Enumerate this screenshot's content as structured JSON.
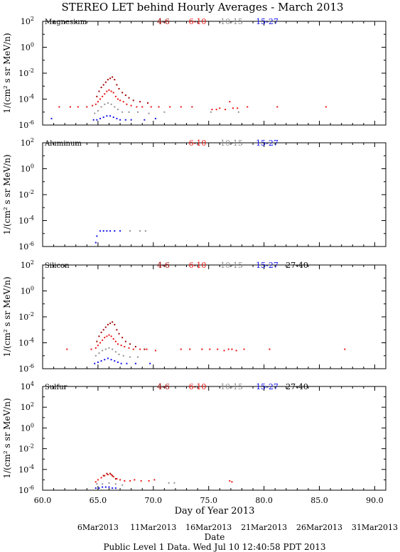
{
  "title": "STEREO LET behind Hourly Averages - March 2013",
  "footer": "Public Level 1 Data. Wed Jul 10 12:40:58 PDT 2013",
  "xlabel": "Day of Year 2013",
  "date_label": "Date",
  "date_ticks": [
    {
      "doy": 65,
      "label": "6Mar2013"
    },
    {
      "doy": 70,
      "label": "11Mar2013"
    },
    {
      "doy": 75,
      "label": "16Mar2013"
    },
    {
      "doy": 80,
      "label": "21Mar2013"
    },
    {
      "doy": 85,
      "label": "26Mar2013"
    },
    {
      "doy": 90,
      "label": "31Mar2013"
    }
  ],
  "colors": {
    "4-6": "#a00000",
    "6-10": "#ee1111",
    "10-15": "#909090",
    "15-27": "#1010ee",
    "27-40": "#000000"
  },
  "chart_data": [
    {
      "type": "scatter",
      "element": "Magnesium",
      "ylabel": "1/(cm² s sr MeV/n)",
      "xlim": [
        60,
        91
      ],
      "ylim_exp": [
        -6,
        2
      ],
      "ytick_exps": [
        -6,
        -4,
        -2,
        0,
        2
      ],
      "legend": [
        "4-6",
        "6-10",
        "10-15",
        "15-27"
      ],
      "series": [
        {
          "name": "4-6",
          "points": [
            [
              64.9,
              -3.8
            ],
            [
              65.1,
              -3.4
            ],
            [
              65.3,
              -3.1
            ],
            [
              65.5,
              -2.9
            ],
            [
              65.7,
              -2.7
            ],
            [
              65.9,
              -2.5
            ],
            [
              66.1,
              -2.4
            ],
            [
              66.3,
              -2.3
            ],
            [
              66.5,
              -2.5
            ],
            [
              66.7,
              -2.9
            ],
            [
              66.9,
              -3.2
            ],
            [
              67.2,
              -3.5
            ],
            [
              67.5,
              -3.7
            ],
            [
              67.8,
              -3.9
            ],
            [
              68.2,
              -4.1
            ],
            [
              68.8,
              -4.2
            ],
            [
              69.5,
              -4.3
            ]
          ]
        },
        {
          "name": "6-10",
          "points": [
            [
              61.5,
              -4.6
            ],
            [
              62.5,
              -4.6
            ],
            [
              63.2,
              -4.6
            ],
            [
              64.0,
              -4.6
            ],
            [
              64.5,
              -4.5
            ],
            [
              64.8,
              -4.4
            ],
            [
              65.0,
              -4.2
            ],
            [
              65.2,
              -4.0
            ],
            [
              65.4,
              -3.8
            ],
            [
              65.6,
              -3.6
            ],
            [
              65.8,
              -3.4
            ],
            [
              66.0,
              -3.3
            ],
            [
              66.2,
              -3.4
            ],
            [
              66.4,
              -3.5
            ],
            [
              66.6,
              -3.8
            ],
            [
              66.8,
              -4.0
            ],
            [
              67.0,
              -4.1
            ],
            [
              67.3,
              -4.2
            ],
            [
              67.6,
              -4.4
            ],
            [
              68.0,
              -4.5
            ],
            [
              68.5,
              -4.6
            ],
            [
              69.0,
              -4.6
            ],
            [
              69.8,
              -4.6
            ],
            [
              70.5,
              -4.6
            ],
            [
              71.5,
              -4.6
            ],
            [
              72.5,
              -4.6
            ],
            [
              73.5,
              -4.6
            ],
            [
              75.3,
              -4.8
            ],
            [
              75.7,
              -4.8
            ],
            [
              76.0,
              -4.7
            ],
            [
              76.5,
              -4.8
            ],
            [
              76.9,
              -4.2
            ],
            [
              77.2,
              -4.7
            ],
            [
              77.6,
              -4.7
            ],
            [
              78.5,
              -4.6
            ],
            [
              81.2,
              -4.6
            ],
            [
              85.6,
              -4.6
            ]
          ]
        },
        {
          "name": "10-15",
          "points": [
            [
              64.7,
              -5.1
            ],
            [
              65.0,
              -4.9
            ],
            [
              65.3,
              -4.6
            ],
            [
              65.6,
              -4.4
            ],
            [
              65.9,
              -4.3
            ],
            [
              66.2,
              -4.4
            ],
            [
              66.5,
              -4.6
            ],
            [
              66.8,
              -4.8
            ],
            [
              67.2,
              -5.0
            ],
            [
              67.8,
              -5.0
            ],
            [
              68.6,
              -5.0
            ],
            [
              69.6,
              -5.1
            ],
            [
              71.0,
              -5.0
            ],
            [
              75.2,
              -5.0
            ],
            [
              77.7,
              -5.0
            ]
          ]
        },
        {
          "name": "15-27",
          "points": [
            [
              60.8,
              -5.5
            ],
            [
              64.6,
              -5.6
            ],
            [
              64.9,
              -5.6
            ],
            [
              65.2,
              -5.5
            ],
            [
              65.5,
              -5.4
            ],
            [
              65.8,
              -5.3
            ],
            [
              66.1,
              -5.3
            ],
            [
              66.4,
              -5.4
            ],
            [
              66.7,
              -5.5
            ],
            [
              67.0,
              -5.6
            ],
            [
              67.5,
              -5.6
            ],
            [
              68.0,
              -5.6
            ],
            [
              69.2,
              -5.6
            ],
            [
              70.2,
              -5.5
            ]
          ]
        }
      ]
    },
    {
      "type": "scatter",
      "element": "Aluminum",
      "ylabel": "1/(cm² s sr MeV/n)",
      "xlim": [
        60,
        91
      ],
      "ylim_exp": [
        -6,
        2
      ],
      "ytick_exps": [
        -6,
        -4,
        -2,
        0,
        2
      ],
      "legend": [
        "6-10",
        "10-15",
        "15-27"
      ],
      "series": [
        {
          "name": "6-10",
          "points": []
        },
        {
          "name": "10-15",
          "points": [
            [
              67.9,
              -4.8
            ],
            [
              68.8,
              -4.8
            ],
            [
              69.3,
              -4.8
            ]
          ]
        },
        {
          "name": "15-27",
          "points": [
            [
              64.8,
              -5.7
            ],
            [
              64.9,
              -5.2
            ],
            [
              65.2,
              -4.8
            ],
            [
              65.5,
              -4.8
            ],
            [
              65.8,
              -4.8
            ],
            [
              66.1,
              -4.8
            ],
            [
              66.5,
              -4.8
            ],
            [
              67.0,
              -4.8
            ]
          ]
        }
      ]
    },
    {
      "type": "scatter",
      "element": "Silicon",
      "ylabel": "1/(cm² s sr MeV/n)",
      "xlim": [
        60,
        91
      ],
      "ylim_exp": [
        -6,
        2
      ],
      "ytick_exps": [
        -6,
        -4,
        -2,
        0,
        2
      ],
      "legend": [
        "4-6",
        "6-10",
        "10-15",
        "15-27",
        "27-40"
      ],
      "series": [
        {
          "name": "4-6",
          "points": [
            [
              64.9,
              -3.9
            ],
            [
              65.1,
              -3.5
            ],
            [
              65.3,
              -3.2
            ],
            [
              65.5,
              -3.0
            ],
            [
              65.7,
              -2.8
            ],
            [
              65.9,
              -2.6
            ],
            [
              66.1,
              -2.5
            ],
            [
              66.3,
              -2.4
            ],
            [
              66.5,
              -2.6
            ],
            [
              66.7,
              -3.0
            ],
            [
              66.9,
              -3.3
            ],
            [
              67.2,
              -3.6
            ],
            [
              67.5,
              -3.9
            ],
            [
              67.9,
              -4.1
            ],
            [
              68.4,
              -4.3
            ],
            [
              69.2,
              -4.5
            ]
          ]
        },
        {
          "name": "6-10",
          "points": [
            [
              62.2,
              -4.5
            ],
            [
              64.4,
              -4.5
            ],
            [
              64.8,
              -4.4
            ],
            [
              65.0,
              -4.2
            ],
            [
              65.2,
              -4.0
            ],
            [
              65.4,
              -3.8
            ],
            [
              65.6,
              -3.6
            ],
            [
              65.8,
              -3.5
            ],
            [
              66.0,
              -3.4
            ],
            [
              66.2,
              -3.5
            ],
            [
              66.4,
              -3.7
            ],
            [
              66.6,
              -3.9
            ],
            [
              66.8,
              -4.1
            ],
            [
              67.1,
              -4.2
            ],
            [
              67.4,
              -4.3
            ],
            [
              67.8,
              -4.4
            ],
            [
              68.2,
              -4.5
            ],
            [
              68.8,
              -4.5
            ],
            [
              69.4,
              -4.5
            ],
            [
              70.2,
              -4.6
            ],
            [
              72.5,
              -4.5
            ],
            [
              73.3,
              -4.5
            ],
            [
              74.4,
              -4.5
            ],
            [
              75.1,
              -4.5
            ],
            [
              75.8,
              -4.5
            ],
            [
              76.4,
              -4.6
            ],
            [
              76.8,
              -4.5
            ],
            [
              77.1,
              -4.5
            ],
            [
              77.5,
              -4.6
            ],
            [
              78.2,
              -4.5
            ],
            [
              80.5,
              -4.5
            ],
            [
              87.3,
              -4.5
            ]
          ]
        },
        {
          "name": "10-15",
          "points": [
            [
              64.8,
              -5.0
            ],
            [
              65.1,
              -4.8
            ],
            [
              65.4,
              -4.6
            ],
            [
              65.7,
              -4.5
            ],
            [
              66.0,
              -4.4
            ],
            [
              66.3,
              -4.5
            ],
            [
              66.6,
              -4.7
            ],
            [
              66.9,
              -4.9
            ],
            [
              67.3,
              -5.0
            ],
            [
              67.9,
              -5.1
            ],
            [
              68.6,
              -5.1
            ]
          ]
        },
        {
          "name": "15-27",
          "points": [
            [
              64.7,
              -5.6
            ],
            [
              65.0,
              -5.5
            ],
            [
              65.3,
              -5.4
            ],
            [
              65.6,
              -5.3
            ],
            [
              65.9,
              -5.2
            ],
            [
              66.2,
              -5.3
            ],
            [
              66.5,
              -5.4
            ],
            [
              66.8,
              -5.5
            ],
            [
              67.1,
              -5.6
            ],
            [
              67.6,
              -5.6
            ],
            [
              68.4,
              -5.6
            ],
            [
              69.7,
              -5.6
            ]
          ]
        },
        {
          "name": "27-40",
          "points": []
        }
      ]
    },
    {
      "type": "scatter",
      "element": "Sulfur",
      "ylabel": "1/(cm² s sr MeV/n)",
      "xlim": [
        60,
        91
      ],
      "ylim_exp": [
        -6,
        4
      ],
      "ytick_exps": [
        -6,
        -4,
        -2,
        0,
        2,
        4
      ],
      "legend": [
        "4-6",
        "6-10",
        "10-15",
        "15-27",
        "27-40"
      ],
      "series": [
        {
          "name": "4-6",
          "points": [
            [
              65.5,
              -4.6
            ],
            [
              65.8,
              -4.4
            ],
            [
              66.1,
              -4.4
            ],
            [
              66.3,
              -4.6
            ],
            [
              66.6,
              -4.9
            ]
          ]
        },
        {
          "name": "6-10",
          "points": [
            [
              64.8,
              -5.2
            ],
            [
              65.0,
              -5.0
            ],
            [
              65.3,
              -4.8
            ],
            [
              65.6,
              -4.6
            ],
            [
              65.9,
              -4.5
            ],
            [
              66.2,
              -4.5
            ],
            [
              66.4,
              -4.7
            ],
            [
              66.7,
              -4.9
            ],
            [
              67.0,
              -5.0
            ],
            [
              67.4,
              -5.1
            ],
            [
              67.9,
              -5.1
            ],
            [
              68.3,
              -5.0
            ],
            [
              68.9,
              -5.1
            ],
            [
              69.6,
              -5.1
            ],
            [
              70.1,
              -5.0
            ],
            [
              76.9,
              -5.1
            ],
            [
              77.1,
              -5.2
            ]
          ]
        },
        {
          "name": "10-15",
          "points": [
            [
              64.9,
              -5.4
            ],
            [
              65.4,
              -5.4
            ],
            [
              66.0,
              -5.3
            ],
            [
              66.6,
              -5.4
            ],
            [
              67.2,
              -5.5
            ],
            [
              71.4,
              -5.3
            ],
            [
              71.9,
              -5.3
            ]
          ]
        },
        {
          "name": "15-27",
          "points": [
            [
              64.8,
              -5.8
            ],
            [
              65.1,
              -5.8
            ],
            [
              65.4,
              -5.7
            ],
            [
              65.7,
              -5.7
            ],
            [
              66.0,
              -5.7
            ],
            [
              66.3,
              -5.8
            ],
            [
              66.6,
              -5.8
            ]
          ]
        },
        {
          "name": "27-40",
          "points": []
        }
      ]
    }
  ]
}
